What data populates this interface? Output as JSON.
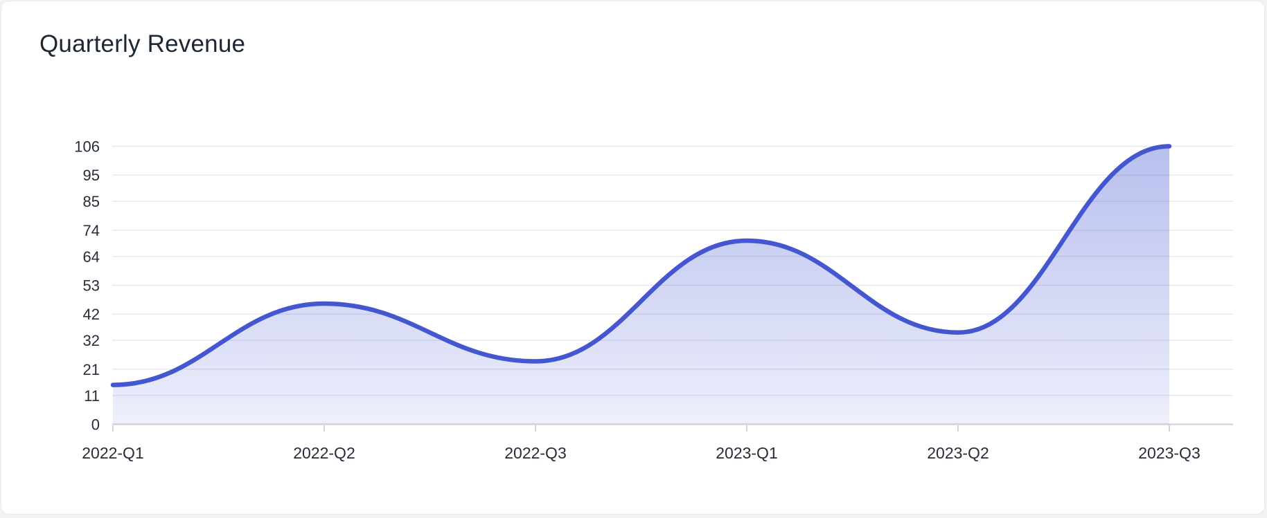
{
  "card": {
    "title": "Quarterly Revenue"
  },
  "chart_data": {
    "type": "area",
    "title": "Quarterly Revenue",
    "categories": [
      "2022-Q1",
      "2022-Q2",
      "2022-Q3",
      "2023-Q1",
      "2023-Q2",
      "2023-Q3"
    ],
    "values": [
      15,
      46,
      24,
      70,
      35,
      106
    ],
    "xlabel": "",
    "ylabel": "",
    "ylim": [
      0,
      106
    ],
    "y_ticks": [
      0,
      11,
      21,
      32,
      42,
      53,
      64,
      74,
      85,
      95,
      106
    ],
    "grid": true,
    "smooth": true,
    "legend": "none",
    "colors": {
      "line": "#4456d0",
      "fill_top": "rgba(84,102,214,0.42)",
      "fill_bottom": "rgba(84,102,214,0.10)",
      "gridline": "#e3e4e9",
      "axis_line": "#d6d7dc",
      "tick_mark": "#d2d3d8",
      "tick_text": "#262c38",
      "title_text": "#1d2633",
      "card_bg": "#ffffff"
    }
  }
}
